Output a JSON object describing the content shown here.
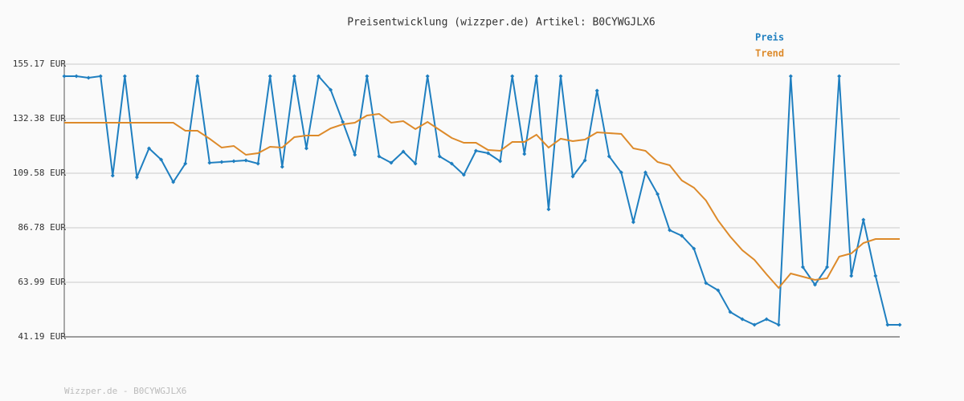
{
  "chart_data": {
    "type": "line",
    "title": "Preisentwicklung (wizzper.de) Artikel: B0CYWGJLX6",
    "footer": "Wizzper.de - B0CYWGJLX6",
    "categories": [
      null,
      null,
      null,
      null,
      null,
      null,
      null,
      null,
      null,
      null,
      null,
      null,
      null,
      null,
      null,
      null,
      null,
      null,
      null,
      null,
      null,
      null,
      null,
      null,
      null,
      null,
      null,
      null,
      null,
      null,
      null,
      null,
      null,
      null,
      null,
      null,
      null,
      null,
      null,
      null,
      null,
      null,
      null,
      null,
      null,
      null,
      null,
      null,
      null,
      null,
      null,
      null,
      null,
      null,
      null,
      null,
      null,
      null,
      null,
      null,
      null,
      null,
      null,
      null,
      null,
      null,
      null,
      null,
      null,
      null
    ],
    "series": [
      {
        "name": "Preis",
        "color": "#1f7fc0",
        "markers": true,
        "values": [
          150.14,
          150.14,
          149.47,
          150.14,
          108.57,
          150.14,
          107.9,
          119.97,
          115.28,
          105.89,
          113.6,
          150.14,
          113.94,
          114.27,
          114.61,
          114.94,
          113.6,
          150.14,
          112.26,
          150.14,
          119.97,
          150.14,
          144.44,
          131.03,
          117.29,
          150.14,
          116.62,
          113.94,
          118.63,
          113.6,
          150.14,
          116.62,
          113.6,
          108.91,
          118.96,
          117.96,
          114.61,
          150.14,
          117.63,
          150.14,
          94.49,
          150.14,
          108.24,
          114.94,
          144.11,
          116.62,
          109.91,
          89.13,
          109.91,
          100.86,
          85.78,
          83.43,
          78.07,
          63.65,
          60.63,
          51.58,
          48.56,
          46.21,
          48.56,
          46.21,
          150.14,
          70.36,
          62.98,
          70.36,
          150.14,
          66.67,
          90.13,
          66.67,
          46.21,
          46.21
        ]
      },
      {
        "name": "Trend",
        "color": "#dd8a2a",
        "markers": false,
        "values": [
          130.7,
          130.7,
          130.7,
          130.7,
          130.7,
          130.7,
          130.7,
          130.7,
          130.7,
          130.7,
          127.35,
          127.35,
          123.99,
          120.3,
          120.98,
          117.29,
          117.96,
          120.64,
          120.3,
          124.66,
          125.33,
          125.33,
          128.35,
          130.03,
          130.7,
          133.71,
          134.38,
          130.7,
          131.37,
          128.02,
          131.03,
          127.68,
          124.33,
          122.32,
          122.32,
          119.3,
          118.96,
          122.65,
          122.65,
          125.67,
          120.3,
          123.99,
          122.99,
          123.66,
          126.67,
          126.34,
          126.0,
          119.97,
          118.96,
          114.27,
          112.93,
          106.56,
          103.54,
          98.18,
          89.8,
          83.09,
          77.39,
          73.37,
          67.34,
          61.64,
          67.67,
          66.33,
          64.99,
          65.66,
          74.71,
          76.05,
          80.41,
          82.09,
          82.09,
          82.09
        ]
      }
    ],
    "ylim": [
      41.19,
      155.17
    ],
    "yticks": [
      {
        "value": 41.19,
        "label": "41.19 EUR"
      },
      {
        "value": 63.99,
        "label": "63.99 EUR"
      },
      {
        "value": 86.78,
        "label": "86.78 EUR"
      },
      {
        "value": 109.58,
        "label": "109.58 EUR"
      },
      {
        "value": 132.38,
        "label": "132.38 EUR"
      },
      {
        "value": 155.17,
        "label": "155.17 EUR"
      }
    ],
    "grid": true,
    "legend": "top-right"
  }
}
